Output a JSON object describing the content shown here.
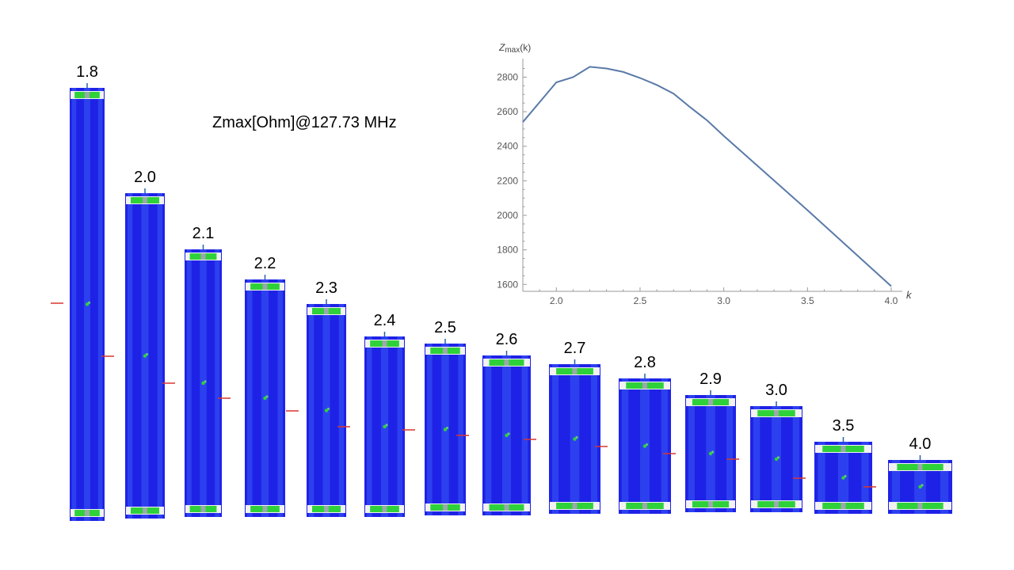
{
  "title": "Zmax[Ohm]@127.73 MHz",
  "colors": {
    "body": "#1e22e6",
    "stripe": "#3a5af5",
    "band": "#2fd13a",
    "cap": "#f2f2f2",
    "feed": "#d9352f",
    "tick": "#2b5fa8",
    "curve": "#5a7aa8",
    "axis": "#9a9a9a"
  },
  "coils": {
    "labels": [
      "1.8",
      "2.0",
      "2.1",
      "2.2",
      "2.3",
      "2.4",
      "2.5",
      "2.6",
      "2.7",
      "2.8",
      "2.9",
      "3.0",
      "3.5",
      "4.0"
    ]
  },
  "chart_data": {
    "type": "line",
    "ylabel": "Zmax(k)",
    "xlabel": "k",
    "xlim": [
      1.8,
      4.0
    ],
    "ylim": [
      1560,
      2880
    ],
    "xticks": [
      "2.0",
      "2.5",
      "3.0",
      "3.5",
      "4.0"
    ],
    "yticks": [
      "1600",
      "1800",
      "2000",
      "2200",
      "2400",
      "2600",
      "2800"
    ],
    "grid": false,
    "series": [
      {
        "x": [
          1.8,
          2.0,
          2.1,
          2.2,
          2.3,
          2.4,
          2.5,
          2.6,
          2.7,
          2.8,
          2.9,
          3.0,
          3.5,
          4.0
        ],
        "values": [
          2540,
          2770,
          2800,
          2860,
          2850,
          2830,
          2795,
          2755,
          2705,
          2625,
          2550,
          2460,
          2030,
          1590
        ]
      }
    ]
  }
}
